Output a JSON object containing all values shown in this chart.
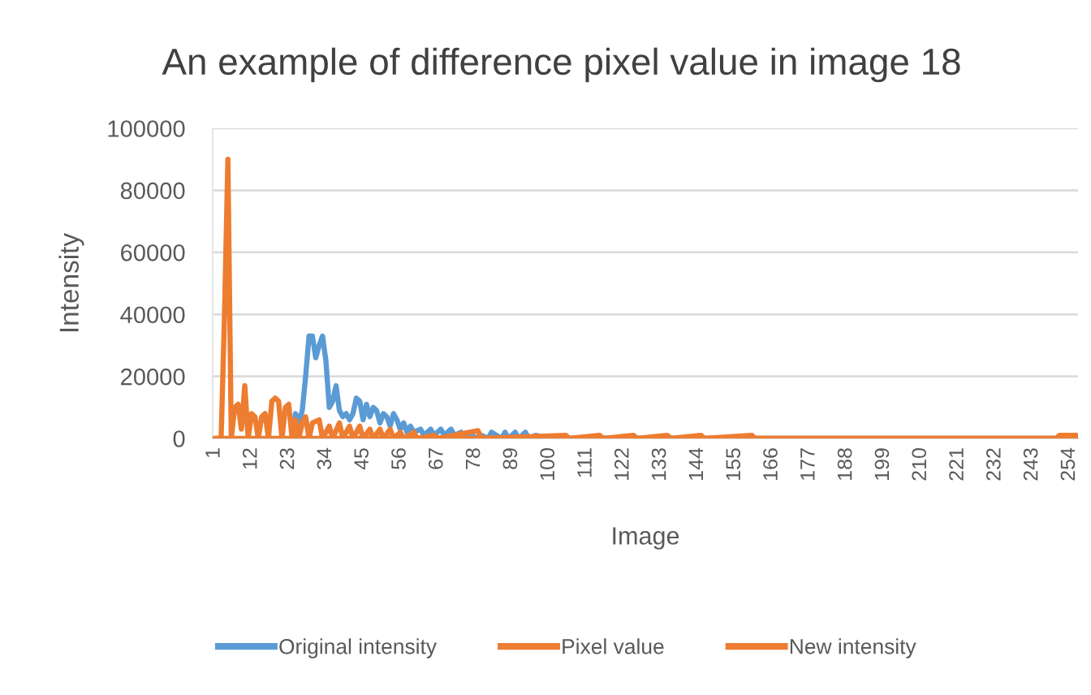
{
  "chart_data": {
    "type": "line",
    "title": "An example of difference pixel value in image 18",
    "xlabel": "Image",
    "ylabel": "Intensity",
    "xlim": [
      0.5,
      256.5
    ],
    "xticks": [
      1,
      12,
      23,
      34,
      45,
      56,
      67,
      78,
      89,
      100,
      111,
      122,
      133,
      144,
      155,
      166,
      177,
      188,
      199,
      210,
      221,
      232,
      243,
      254
    ],
    "ylim": [
      0,
      100000
    ],
    "yticks": [
      0,
      20000,
      40000,
      60000,
      80000,
      100000
    ],
    "grid": "y",
    "legend": "bottom",
    "series": [
      {
        "name": "Original intensity",
        "color": "#5b9bd5",
        "x": [
          24,
          25,
          26,
          27,
          28,
          29,
          30,
          31,
          32,
          33,
          34,
          35,
          36,
          37,
          38,
          39,
          40,
          41,
          42,
          43,
          44,
          45,
          46,
          47,
          48,
          49,
          50,
          51,
          52,
          53,
          54,
          55,
          56,
          57,
          58,
          59,
          60,
          62,
          63,
          65,
          66,
          68,
          69,
          71,
          72,
          74,
          75,
          77,
          78,
          80,
          82,
          83,
          86,
          87,
          88,
          90,
          91,
          93,
          94,
          96,
          100,
          256
        ],
        "values": [
          0,
          8000,
          5000,
          9000,
          20000,
          33000,
          33000,
          26000,
          30000,
          33000,
          25000,
          10000,
          12000,
          17000,
          9000,
          7000,
          8000,
          6000,
          8000,
          13000,
          12000,
          6000,
          11000,
          7000,
          10000,
          9000,
          5000,
          8000,
          7000,
          4000,
          8000,
          6000,
          3000,
          5000,
          2000,
          4000,
          2000,
          3000,
          1000,
          3000,
          1000,
          3000,
          1000,
          3000,
          1000,
          2000,
          1000,
          2000,
          0,
          1000,
          0,
          2000,
          0,
          2000,
          0,
          2000,
          0,
          2000,
          0,
          1000,
          0,
          0
        ]
      },
      {
        "name": "Pixel value",
        "color": "#ed7d31",
        "x": [
          1,
          256
        ],
        "values": [
          0,
          0
        ]
      },
      {
        "name": "New intensity",
        "color": "#ed7d31",
        "x": [
          1,
          3,
          4,
          5,
          6,
          7,
          8,
          9,
          10,
          11,
          12,
          13,
          14,
          15,
          16,
          17,
          18,
          19,
          20,
          21,
          22,
          23,
          24,
          25,
          26,
          27,
          28,
          29,
          30,
          32,
          33,
          35,
          36,
          38,
          39,
          41,
          42,
          44,
          45,
          47,
          48,
          50,
          51,
          53,
          54,
          56,
          57,
          60,
          61,
          66,
          67,
          79,
          80,
          105,
          106,
          115,
          116,
          125,
          126,
          135,
          136,
          145,
          146,
          160,
          161,
          250,
          251,
          256
        ],
        "values": [
          0,
          0,
          40000,
          90000,
          0,
          10000,
          11000,
          3000,
          17000,
          0,
          8000,
          7000,
          0,
          7000,
          8000,
          0,
          12000,
          13000,
          12000,
          0,
          10000,
          11000,
          0,
          6000,
          0,
          5000,
          7000,
          0,
          5000,
          6000,
          0,
          4000,
          0,
          5000,
          0,
          4000,
          0,
          4000,
          0,
          3000,
          0,
          3000,
          0,
          3000,
          0,
          2000,
          0,
          2000,
          0,
          1000,
          0,
          2500,
          0,
          1000,
          0,
          1000,
          0,
          1000,
          0,
          1000,
          0,
          1000,
          0,
          1000,
          0,
          0,
          1000,
          1000
        ]
      }
    ]
  }
}
